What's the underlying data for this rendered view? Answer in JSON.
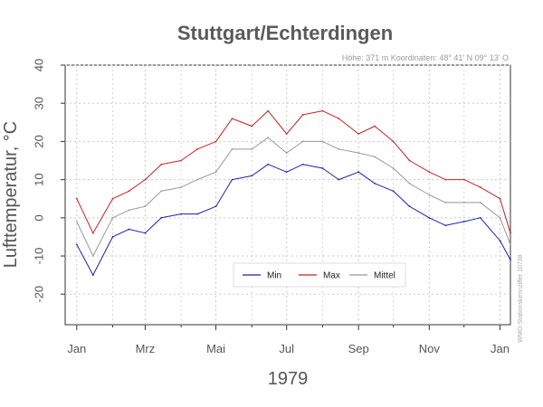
{
  "chart_data": {
    "type": "line",
    "title": "Stuttgart/Echterdingen",
    "meta_text": "Höhe: 371 m   Koordinaten: 48° 41' N  09° 13' O",
    "side_text": "WMO-Stationskennziffer 10738",
    "xlabel": "1979",
    "ylabel": "Lufttemperatur, °C",
    "ylim": [
      -28,
      40
    ],
    "y_ticks": [
      -20,
      -10,
      0,
      10,
      20,
      30,
      40
    ],
    "x_tick_labels": [
      "Jan",
      "Mrz",
      "Mai",
      "Jul",
      "Sep",
      "Nov",
      "Jan"
    ],
    "grid": true,
    "legend_position": "bottom-center",
    "x": [
      "1979-01-01",
      "1979-01-15",
      "1979-02-01",
      "1979-02-15",
      "1979-03-01",
      "1979-03-15",
      "1979-04-01",
      "1979-04-15",
      "1979-05-01",
      "1979-05-15",
      "1979-06-01",
      "1979-06-15",
      "1979-07-01",
      "1979-07-15",
      "1979-08-01",
      "1979-08-15",
      "1979-09-01",
      "1979-09-15",
      "1979-10-01",
      "1979-10-15",
      "1979-11-01",
      "1979-11-15",
      "1979-12-01",
      "1979-12-15",
      "1980-01-01",
      "1980-01-10"
    ],
    "series": [
      {
        "name": "Min",
        "color": "#1f1fb4",
        "values": [
          -7,
          -15,
          -5,
          -3,
          -4,
          0,
          1,
          1,
          3,
          10,
          11,
          14,
          12,
          14,
          13,
          10,
          12,
          9,
          7,
          3,
          0,
          -2,
          -1,
          0,
          -6,
          -11
        ]
      },
      {
        "name": "Max",
        "color": "#cc2020",
        "values": [
          5,
          -4,
          5,
          7,
          10,
          14,
          15,
          18,
          20,
          26,
          24,
          28,
          22,
          27,
          28,
          26,
          22,
          24,
          20,
          15,
          12,
          10,
          10,
          8,
          5,
          -4
        ]
      },
      {
        "name": "Mittel",
        "color": "#999999",
        "values": [
          -1,
          -10,
          0,
          2,
          3,
          7,
          8,
          10,
          12,
          18,
          18,
          21,
          17,
          20,
          20,
          18,
          17,
          16,
          13,
          9,
          6,
          4,
          4,
          4,
          0,
          -7
        ]
      }
    ]
  }
}
